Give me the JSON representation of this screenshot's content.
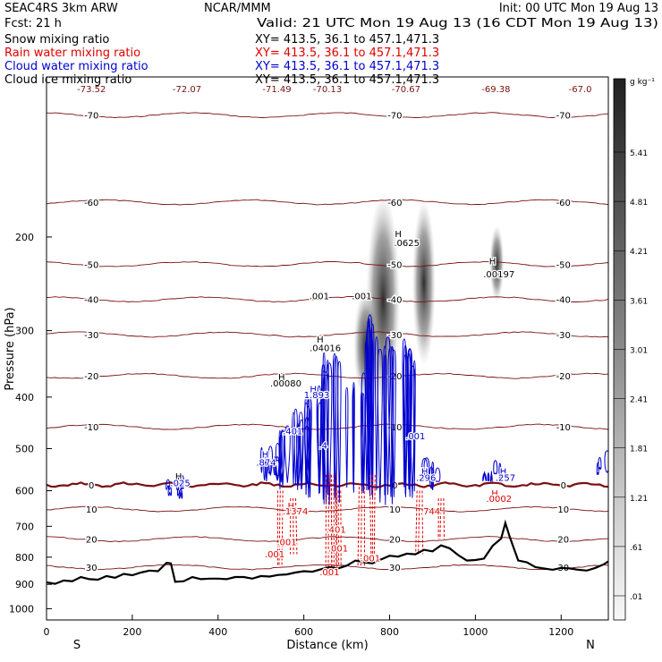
{
  "header": {
    "left_line1": "SEAC4RS  3km ARW",
    "left_line2": "Fcst:   21 h",
    "center_line1": "NCAR/MMM",
    "init": "Init: 00 UTC Mon 19 Aug 13",
    "valid": "Valid: 21 UTC Mon 19 Aug 13 (16 CDT Mon 19 Aug 13)",
    "fields": [
      {
        "label": "Snow mixing ratio",
        "xy": "XY= 413.5, 36.1 to 457.1,471.3",
        "color": "#000000"
      },
      {
        "label": "Rain water mixing ratio",
        "xy": "XY= 413.5, 36.1 to 457.1,471.3",
        "color": "#e00000"
      },
      {
        "label": "Cloud water mixing ratio",
        "xy": "XY= 413.5, 36.1 to 457.1,471.3",
        "color": "#0000d0"
      },
      {
        "label": "Cloud ice mixing ratio",
        "xy": "XY= 413.5, 36.1 to 457.1,471.3",
        "color": "#000000"
      }
    ]
  },
  "colors": {
    "temp_contour": "#7a1010",
    "zero_isotherm": "#7a1010",
    "rain": "#e00000",
    "cloud_water": "#0000d0",
    "terrain": "#000000"
  },
  "chart_data": {
    "type": "cross-section",
    "xlabel": "Distance (km)",
    "ylabel": "Pressure (hPa)",
    "xlim": [
      0,
      1310
    ],
    "ylim": [
      1050,
      100
    ],
    "y_scale": "log",
    "x_ticks": [
      0,
      200,
      400,
      600,
      800,
      1000,
      1200
    ],
    "y_ticks": [
      200,
      300,
      400,
      500,
      600,
      700,
      800,
      900,
      1000
    ],
    "endpoint_left": "S",
    "endpoint_right": "N",
    "colorbar": {
      "unit": "g kg⁻¹",
      "labels": [
        "5.41",
        "4.81",
        "4.21",
        "3.61",
        "3.01",
        "2.41",
        "1.81",
        "1.21",
        ".61",
        ".01"
      ]
    },
    "temperature_contours": [
      {
        "label": "-70",
        "p": 118
      },
      {
        "label": "-60",
        "p": 172
      },
      {
        "label": "-50",
        "p": 225
      },
      {
        "label": "-40",
        "p": 262
      },
      {
        "label": "-30",
        "p": 305
      },
      {
        "label": "-20",
        "p": 365
      },
      {
        "label": "-10",
        "p": 455
      },
      {
        "label": "0",
        "p": 585
      },
      {
        "label": "10",
        "p": 650
      },
      {
        "label": "20",
        "p": 740
      },
      {
        "label": "30",
        "p": 835
      }
    ],
    "top_labels": [
      "-73.52",
      "-72.07",
      "-71.49",
      "-70.13",
      "-70.67",
      "-69.38",
      "-67.0"
    ],
    "extrema_labels": [
      {
        "text": "H",
        "x": 308,
        "p": 572,
        "color": "black"
      },
      {
        "text": ".025",
        "x": 312,
        "p": 588,
        "color": "blue"
      },
      {
        "text": "H",
        "x": 510,
        "p": 520,
        "color": "blue"
      },
      {
        "text": ".874",
        "x": 512,
        "p": 538,
        "color": "blue"
      },
      {
        "text": "H",
        "x": 548,
        "p": 372,
        "color": "black"
      },
      {
        "text": ".00080",
        "x": 558,
        "p": 382,
        "color": "black"
      },
      {
        "text": "H",
        "x": 622,
        "p": 392,
        "color": "blue"
      },
      {
        "text": "1.893",
        "x": 630,
        "p": 402,
        "color": "blue"
      },
      {
        "text": ".401",
        "x": 574,
        "p": 470,
        "color": "blue"
      },
      {
        "text": "H",
        "x": 638,
        "p": 316,
        "color": "black"
      },
      {
        "text": ".04016",
        "x": 650,
        "p": 328,
        "color": "black"
      },
      {
        "text": ".001",
        "x": 636,
        "p": 262,
        "color": "black"
      },
      {
        "text": ".001",
        "x": 735,
        "p": 262,
        "color": "black"
      },
      {
        "text": "H",
        "x": 820,
        "p": 200,
        "color": "black"
      },
      {
        "text": ".0625",
        "x": 840,
        "p": 208,
        "color": "black"
      },
      {
        "text": "H",
        "x": 1040,
        "p": 225,
        "color": "black"
      },
      {
        "text": ".00197",
        "x": 1055,
        "p": 238,
        "color": "black"
      },
      {
        "text": "H",
        "x": 882,
        "p": 560,
        "color": "blue"
      },
      {
        "text": ".296",
        "x": 885,
        "p": 575,
        "color": "blue"
      },
      {
        "text": "H",
        "x": 1065,
        "p": 560,
        "color": "blue"
      },
      {
        "text": ".257",
        "x": 1070,
        "p": 575,
        "color": "blue"
      },
      {
        "text": "H",
        "x": 1045,
        "p": 615,
        "color": "red"
      },
      {
        "text": ".0002",
        "x": 1055,
        "p": 630,
        "color": "red"
      },
      {
        "text": "H",
        "x": 570,
        "p": 650,
        "color": "red"
      },
      {
        "text": ".1374",
        "x": 580,
        "p": 665,
        "color": "red"
      },
      {
        "text": ".744",
        "x": 895,
        "p": 665,
        "color": "red"
      },
      {
        "text": ".001",
        "x": 560,
        "p": 760,
        "color": "red"
      },
      {
        "text": ".001",
        "x": 532,
        "p": 800,
        "color": "red"
      },
      {
        "text": ".401",
        "x": 675,
        "p": 720,
        "color": "red"
      },
      {
        "text": ".001",
        "x": 680,
        "p": 780,
        "color": "red"
      },
      {
        "text": ".001",
        "x": 755,
        "p": 815,
        "color": "red"
      },
      {
        "text": ".001",
        "x": 660,
        "p": 865,
        "color": "red"
      },
      {
        "text": ".001",
        "x": 860,
        "p": 480,
        "color": "blue"
      },
      {
        "text": ".4",
        "x": 645,
        "p": 500,
        "color": "blue"
      }
    ],
    "terrain_profile": {
      "x": [
        0,
        20,
        40,
        60,
        80,
        100,
        120,
        140,
        160,
        180,
        200,
        220,
        240,
        260,
        280,
        290,
        300,
        320,
        340,
        360,
        380,
        400,
        420,
        440,
        460,
        480,
        500,
        520,
        540,
        560,
        580,
        600,
        620,
        640,
        660,
        680,
        700,
        720,
        740,
        760,
        780,
        800,
        820,
        840,
        860,
        880,
        900,
        920,
        940,
        960,
        980,
        1000,
        1020,
        1040,
        1060,
        1070,
        1080,
        1100,
        1120,
        1140,
        1160,
        1180,
        1200,
        1220,
        1240,
        1260,
        1280,
        1300,
        1310
      ],
      "p": [
        892,
        898,
        885,
        888,
        872,
        880,
        882,
        868,
        875,
        860,
        865,
        855,
        848,
        850,
        820,
        822,
        890,
        888,
        872,
        880,
        878,
        878,
        880,
        872,
        872,
        878,
        868,
        870,
        864,
        862,
        855,
        850,
        852,
        843,
        835,
        840,
        830,
        812,
        818,
        822,
        808,
        795,
        798,
        788,
        790,
        775,
        780,
        760,
        770,
        793,
        812,
        810,
        805,
        762,
        738,
        690,
        732,
        812,
        818,
        835,
        840,
        845,
        838,
        840,
        845,
        848,
        838,
        825,
        815
      ]
    }
  }
}
